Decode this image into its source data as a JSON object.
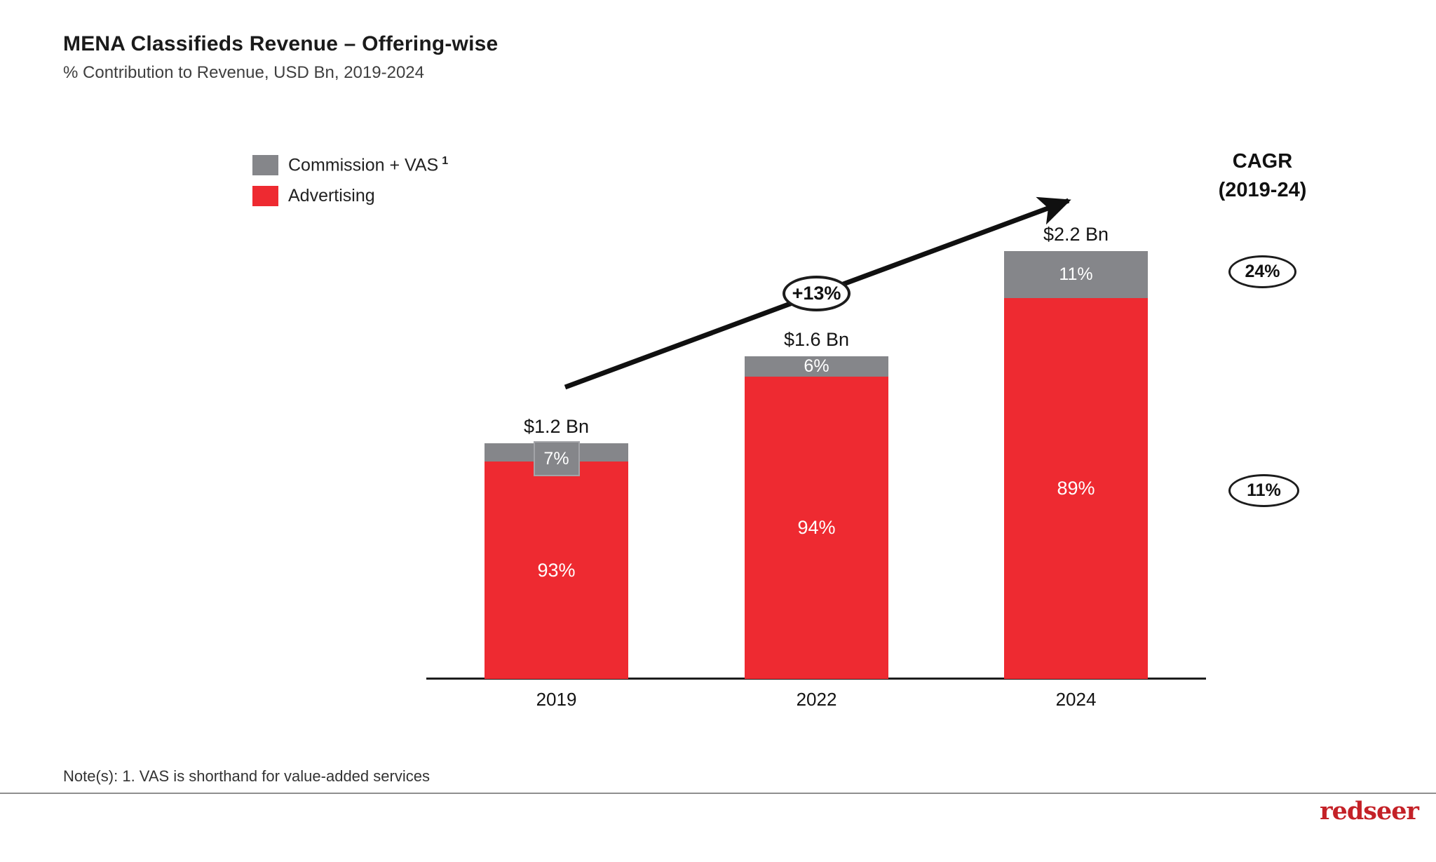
{
  "header": {
    "title": "MENA Classifieds Revenue – Offering-wise",
    "subtitle": "% Contribution to Revenue, USD Bn, 2019-2024"
  },
  "legend": {
    "items": [
      {
        "label": "Commission + VAS",
        "superscript": "1",
        "color": "#85868A"
      },
      {
        "label": "Advertising",
        "superscript": "",
        "color": "#EE2A31"
      }
    ]
  },
  "cagr": {
    "line1": "CAGR",
    "line2": "(2019-24)",
    "ovals": [
      "24%",
      "11%"
    ]
  },
  "annotations": {
    "growth": "+13%"
  },
  "note": "Note(s): 1. VAS is shorthand for value-added services",
  "brand": "redseer",
  "chart_data": {
    "type": "bar",
    "stacked": true,
    "title": "MENA Classifieds Revenue – Offering-wise",
    "subtitle": "% Contribution to Revenue, USD Bn, 2019-2024",
    "categories": [
      "2019",
      "2022",
      "2024"
    ],
    "series": [
      {
        "name": "Advertising",
        "color": "#EE2A31",
        "values_pct": [
          93,
          94,
          89
        ],
        "labels": [
          "93%",
          "94%",
          "89%"
        ],
        "cagr_2019_24": "11%"
      },
      {
        "name": "Commission + VAS",
        "color": "#85868A",
        "values_pct": [
          7,
          6,
          11
        ],
        "labels": [
          "7%",
          "6%",
          "11%"
        ],
        "cagr_2019_24": "24%"
      }
    ],
    "totals_usd_bn": [
      1.2,
      1.6,
      2.2
    ],
    "total_labels": [
      "$1.2 Bn",
      "$1.6 Bn",
      "$2.2 Bn"
    ],
    "growth_annotation": "+13%",
    "unit": "USD Bn",
    "xlabel": "",
    "ylabel": "",
    "grid": false,
    "legend_position": "top-left"
  }
}
